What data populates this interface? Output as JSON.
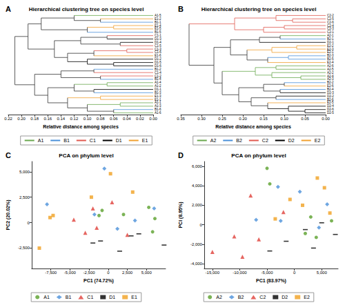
{
  "chart_data": [
    {
      "type": "dendrogram",
      "annotations": [
        "A"
      ],
      "title": "Hierarchical clustering tree on species level",
      "xlabel": "Relative distance among species",
      "xlim": [
        0.22,
        0
      ],
      "xticks": [
        0.22,
        {
          "value": 0.2,
          "label": "0.20"
        },
        0.18,
        0.16,
        0.14,
        0.12,
        {
          "value": 0.1,
          "label": "0.10"
        },
        0.08,
        0.06,
        0.04,
        0.02,
        {
          "value": 0,
          "label": "0.00"
        }
      ],
      "legend": "bottom",
      "series": [
        {
          "name": "A1",
          "color": "#6aa84f"
        },
        {
          "name": "B1",
          "color": "#4a90d9"
        },
        {
          "name": "C1",
          "color": "#e05a50"
        },
        {
          "name": "D1",
          "color": "#000000"
        },
        {
          "name": "E1",
          "color": "#f0a030"
        }
      ],
      "tree": {
        "h": 0.21,
        "c": [
          {
            "h": 0.19,
            "c": [
              {
                "h": 0.17,
                "c": [
                  {
                    "h": 0.12,
                    "c": [
                      "A1-5",
                      {
                        "h": 0.08,
                        "c": [
                          "E1-2",
                          "B1-1"
                        ]
                      }
                    ]
                  },
                  {
                    "h": 0.1,
                    "c": [
                      {
                        "h": 0.06,
                        "c": [
                          "E1-4",
                          "E1-5"
                        ]
                      },
                      "B1-5"
                    ]
                  }
                ]
              },
              {
                "h": 0.15,
                "c": [
                  {
                    "h": 0.11,
                    "c": [
                      {
                        "h": 0.07,
                        "c": [
                          "C1-1",
                          "D1-3"
                        ]
                      },
                      {
                        "h": 0.05,
                        "c": [
                          "D1-4",
                          "C1-5"
                        ]
                      }
                    ]
                  },
                  {
                    "h": 0.13,
                    "c": [
                      {
                        "h": 0.09,
                        "c": [
                          {
                            "h": 0.04,
                            "c": [
                              "C1-3",
                              "C1-6"
                            ]
                          },
                          "E1-6"
                        ]
                      },
                      {
                        "h": 0.1,
                        "c": [
                          "D1-2",
                          {
                            "h": 0.06,
                            "c": [
                              "D1-5",
                              "D1-6"
                            ]
                          }
                        ]
                      }
                    ]
                  }
                ]
              }
            ]
          },
          {
            "h": 0.18,
            "c": [
              {
                "h": 0.14,
                "c": [
                  {
                    "h": 0.09,
                    "c": [
                      "B1-2",
                      "C1-4"
                    ]
                  },
                  {
                    "h": 0.08,
                    "c": [
                      "C1-2",
                      "B1-4"
                    ]
                  }
                ]
              },
              {
                "h": 0.16,
                "c": [
                  {
                    "h": 0.12,
                    "c": [
                      {
                        "h": 0.07,
                        "c": [
                          "A1-4",
                          "A1-2"
                        ]
                      },
                      {
                        "h": 0.09,
                        "c": [
                          "D1-1",
                          "B1-3"
                        ]
                      }
                    ]
                  },
                  {
                    "h": 0.13,
                    "c": [
                      {
                        "h": 0.08,
                        "c": [
                          "E1-3",
                          "E1-1"
                        ]
                      },
                      {
                        "h": 0.1,
                        "c": [
                          {
                            "h": 0.05,
                            "c": [
                              "A1-1",
                              "A1-3"
                            ]
                          },
                          {
                            "h": 0.06,
                            "c": [
                              "B1-6",
                              "A1-6"
                            ]
                          }
                        ]
                      }
                    ]
                  }
                ]
              }
            ]
          }
        ]
      }
    },
    {
      "type": "dendrogram",
      "annotations": [
        "B"
      ],
      "title": "Hierarchical clustering tree on species level",
      "xlabel": "Relative distance among species",
      "xlim": [
        0.35,
        0
      ],
      "xticks": [
        0.35,
        {
          "value": 0.3,
          "label": "0.30"
        },
        0.25,
        {
          "value": 0.2,
          "label": "0.20"
        },
        0.15,
        {
          "value": 0.1,
          "label": "0.10"
        },
        0.05,
        {
          "value": 0,
          "label": "0.00"
        }
      ],
      "legend": "bottom",
      "series": [
        {
          "name": "A2",
          "color": "#6aa84f"
        },
        {
          "name": "B2",
          "color": "#4a90d9"
        },
        {
          "name": "C2",
          "color": "#e05a50"
        },
        {
          "name": "D2",
          "color": "#000000"
        },
        {
          "name": "E2",
          "color": "#f0a030"
        }
      ],
      "tree": {
        "h": 0.33,
        "c": [
          {
            "h": 0.22,
            "c": [
              {
                "h": 0.12,
                "c": [
                  "C2-2",
                  {
                    "h": 0.08,
                    "c": [
                      "C2-5",
                      "C2-6"
                    ]
                  }
                ]
              },
              {
                "h": 0.15,
                "c": [
                  {
                    "h": 0.1,
                    "c": [
                      "C2-4",
                      "C2-3"
                    ]
                  },
                  "C2-1"
                ]
              }
            ]
          },
          {
            "h": 0.27,
            "c": [
              {
                "h": 0.23,
                "c": [
                  {
                    "h": 0.16,
                    "c": [
                      {
                        "h": 0.11,
                        "c": [
                          "A2-1",
                          "B2-1"
                        ]
                      },
                      "D2-1"
                    ]
                  },
                  {
                    "h": 0.19,
                    "c": [
                      {
                        "h": 0.13,
                        "c": [
                          {
                            "h": 0.07,
                            "c": [
                              "E2-2",
                              "E2-3"
                            ]
                          },
                          "E2-1"
                        ]
                      },
                      {
                        "h": 0.14,
                        "c": [
                          {
                            "h": 0.09,
                            "c": [
                              "B2-3",
                              "B2-5"
                            ]
                          },
                          "E2-4"
                        ]
                      }
                    ]
                  }
                ]
              },
              {
                "h": 0.25,
                "c": [
                  {
                    "h": 0.17,
                    "c": [
                      {
                        "h": 0.12,
                        "c": [
                          "A2-6",
                          "A2-5"
                        ]
                      },
                      {
                        "h": 0.13,
                        "c": [
                          "A2-2",
                          {
                            "h": 0.06,
                            "c": [
                              "A2-4",
                              "A2-3"
                            ]
                          }
                        ]
                      }
                    ]
                  },
                  {
                    "h": 0.21,
                    "c": [
                      {
                        "h": 0.15,
                        "c": [
                          {
                            "h": 0.1,
                            "c": [
                              "B2-2",
                              "E2-6"
                            ]
                          },
                          {
                            "h": 0.11,
                            "c": [
                              "B2-4",
                              "D2-3"
                            ]
                          }
                        ]
                      },
                      {
                        "h": 0.18,
                        "c": [
                          {
                            "h": 0.12,
                            "c": [
                              "D2-2",
                              "B2-6"
                            ]
                          },
                          {
                            "h": 0.14,
                            "c": [
                              "E2-5",
                              {
                                "h": 0.09,
                                "c": [
                                  "D2-4",
                                  {
                                    "h": 0.05,
                                    "c": [
                                      "D2-6",
                                      "D2-5"
                                    ]
                                  }
                                ]
                              }
                            ]
                          }
                        ]
                      }
                    ]
                  }
                ]
              }
            ]
          }
        ]
      }
    },
    {
      "type": "scatter",
      "annotations": [
        "C"
      ],
      "title": "PCA on phylum level",
      "xlabel": "PC1 (74.72%)",
      "ylabel": "PC2 (20.02%)",
      "xlim": [
        -10000,
        7500
      ],
      "ylim": [
        -4500,
        6000
      ],
      "xticks": [
        {
          "value": -7500,
          "label": "-7,500"
        },
        {
          "value": -5000,
          "label": "-5,000"
        },
        {
          "value": -2500,
          "label": "-2,500"
        },
        0,
        {
          "value": 2500,
          "label": "2,500"
        },
        {
          "value": 5000,
          "label": "5,000"
        }
      ],
      "yticks": [
        {
          "value": -2500,
          "label": "-2,500"
        },
        0,
        {
          "value": 2500,
          "label": "2,500"
        },
        {
          "value": 5000,
          "label": "5,000"
        }
      ],
      "grid": false,
      "legend": "bottom",
      "series": [
        {
          "name": "A1",
          "color": "#5aa02c",
          "marker": "circle",
          "x": [
            -1200,
            -800,
            2000,
            5800,
            6100,
            5300
          ],
          "y": [
            700,
            1200,
            800,
            -900,
            400,
            1500
          ]
        },
        {
          "name": "B1",
          "color": "#4a90d9",
          "marker": "diamond",
          "x": [
            -500,
            -8000,
            6000,
            -1800,
            3500,
            1200
          ],
          "y": [
            5300,
            1800,
            1400,
            800,
            200,
            -600
          ]
        },
        {
          "name": "C1",
          "color": "#e0403a",
          "marker": "triangle",
          "x": [
            -3000,
            -4500,
            -1500,
            500,
            -2000,
            2500
          ],
          "y": [
            -1000,
            300,
            -500,
            2000,
            1400,
            -1200
          ]
        },
        {
          "name": "D1",
          "color": "#000000",
          "marker": "dash",
          "x": [
            -2000,
            -1000,
            3000,
            7300,
            4000,
            1500
          ],
          "y": [
            -2000,
            -1800,
            -1300,
            -2200,
            -1100,
            -2800
          ]
        },
        {
          "name": "E1",
          "color": "#f0a020",
          "marker": "square",
          "x": [
            -9000,
            -7200,
            -7600,
            300,
            -2200,
            3200
          ],
          "y": [
            -2500,
            700,
            500,
            4800,
            2500,
            3000
          ]
        }
      ]
    },
    {
      "type": "scatter",
      "annotations": [
        "D"
      ],
      "title": "PCA on phylum level",
      "xlabel": "PC1 (83.97%)",
      "ylabel": "PCI (8.95%)",
      "xlim": [
        -16500,
        8000
      ],
      "ylim": [
        -4500,
        6500
      ],
      "xticks": [
        {
          "value": -15000,
          "label": "-15,000"
        },
        {
          "value": -10000,
          "label": "-10,000"
        },
        {
          "value": -5000,
          "label": "-5,000"
        },
        0,
        {
          "value": 5000,
          "label": "5,000"
        }
      ],
      "yticks": [
        {
          "value": -4000,
          "label": "-4,000"
        },
        {
          "value": -2000,
          "label": "-2,000"
        },
        0,
        {
          "value": 2000,
          "label": "2,000"
        },
        {
          "value": 4000,
          "label": "4,000"
        },
        {
          "value": 6000,
          "label": "6,000"
        }
      ],
      "grid": false,
      "legend": "bottom",
      "series": [
        {
          "name": "A2",
          "color": "#5aa02c",
          "marker": "circle",
          "x": [
            -5000,
            -4500,
            2000,
            4000,
            6800,
            3000
          ],
          "y": [
            5800,
            4200,
            -900,
            -1300,
            400,
            800
          ]
        },
        {
          "name": "B2",
          "color": "#4a90d9",
          "marker": "diamond",
          "x": [
            -3000,
            -2500,
            1000,
            4500,
            6000,
            -7000
          ],
          "y": [
            3900,
            400,
            3400,
            -300,
            2100,
            500
          ]
        },
        {
          "name": "C2",
          "color": "#e0403a",
          "marker": "triangle",
          "x": [
            -15000,
            -11000,
            -9500,
            -8000,
            -2000,
            -6500
          ],
          "y": [
            -2800,
            -1200,
            -3300,
            3000,
            1300,
            -1500
          ]
        },
        {
          "name": "D2",
          "color": "#000000",
          "marker": "dash",
          "x": [
            -4500,
            -1500,
            2000,
            5000,
            7500,
            3500
          ],
          "y": [
            -2700,
            -1700,
            -500,
            200,
            -1000,
            -2400
          ]
        },
        {
          "name": "E2",
          "color": "#f0a020",
          "marker": "square",
          "x": [
            -800,
            1500,
            4200,
            5500,
            -3500,
            6500
          ],
          "y": [
            2600,
            2000,
            4800,
            3800,
            600,
            1200
          ]
        }
      ]
    }
  ]
}
